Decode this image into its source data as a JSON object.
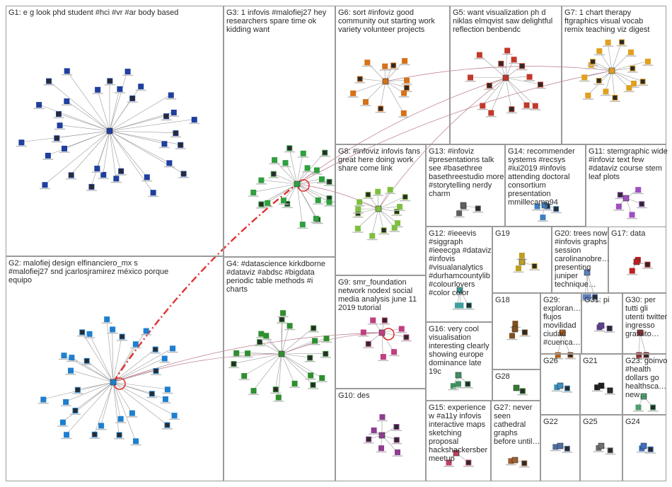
{
  "groups": [
    {
      "id": "G1",
      "title": "G1: e g look phd student #hci #vr #ar body based",
      "color": "#1f3f9f"
    },
    {
      "id": "G2",
      "title": "G2: malofiej design elfinanciero_mx s #malofiej27 snd jcarlosjramirez méxico porque equipo",
      "color": "#1f7fcf"
    },
    {
      "id": "G3",
      "title": "G3: 1 infovis #malofiej27 hey researchers spare time ok kidding want",
      "color": "#2f9f3f"
    },
    {
      "id": "G4",
      "title": "G4: #datascience kirkdborne #dataviz #abdsc #bigdata periodic table methods #i charts",
      "color": "#2f8f2f"
    },
    {
      "id": "G5",
      "title": "G5: want visualization ph d niklas elmqvist saw delightful reflection benbendc",
      "color": "#c0392b"
    },
    {
      "id": "G6",
      "title": "G6: sort #infoviz good community out starting work variety volunteer projects",
      "color": "#d4721a"
    },
    {
      "id": "G7",
      "title": "G7: 1 chart therapy ftgraphics visual vocab remix teaching viz digest",
      "color": "#e0a020"
    },
    {
      "id": "G8",
      "title": "G8: #infoviz infovis fans great here doing work share come link",
      "color": "#7fbf3f"
    },
    {
      "id": "G9",
      "title": "G9: smr_foundation network nodexl social media analysis june 11 2019 tutorial",
      "color": "#c03f7f"
    },
    {
      "id": "G10",
      "title": "G10: des",
      "color": "#8f3f8f"
    },
    {
      "id": "G11",
      "title": "G11: stemgraphic wide #infoviz text few #dataviz course stem leaf plots",
      "color": "#9f4fbf"
    },
    {
      "id": "G12",
      "title": "G12: #ieeevis #siggraph #ieeecga #dataviz #infovis #visualanalytics #durhamcountylib #colourlovers #color color",
      "color": "#3f9f9f"
    },
    {
      "id": "G13",
      "title": "G13: #infoviz #presentations talk see #basethree basethreestudio more #storytelling nerdy charm",
      "color": "#5f5f5f"
    },
    {
      "id": "G14",
      "title": "G14: recommender systems #recsys #iui2019 #infovis attending doctoral consortium presentation mmillecamp94",
      "color": "#3f7fbf"
    },
    {
      "id": "G15",
      "title": "G15: experience w #a11y infovis interactive maps sketching proposal hackshackersber meetup",
      "color": "#bf3f5f"
    },
    {
      "id": "G16",
      "title": "G16: very cool visualisation interesting clearly showing europe dominance late 19c",
      "color": "#3f8f5f"
    },
    {
      "id": "G17",
      "title": "G17: data",
      "color": "#bf1f1f"
    },
    {
      "id": "G18",
      "title": "G18",
      "color": "#7f4f1f"
    },
    {
      "id": "G19",
      "title": "G19",
      "color": "#bf9f1f"
    },
    {
      "id": "G20",
      "title": "G20: trees now #infovis graphs session carolinanobre… presenting juniper technique…",
      "color": "#5f7fbf"
    },
    {
      "id": "G21",
      "title": "G21",
      "color": "#1f1f1f"
    },
    {
      "id": "G22",
      "title": "G22",
      "color": "#4f6f9f"
    },
    {
      "id": "G23",
      "title": "G23: goinvo #health dollars go healthsca… new…",
      "color": "#4f9f6f"
    },
    {
      "id": "G24",
      "title": "G24",
      "color": "#3f6fbf"
    },
    {
      "id": "G25",
      "title": "G25",
      "color": "#6f6f6f"
    },
    {
      "id": "G26",
      "title": "G26",
      "color": "#3f8fbf"
    },
    {
      "id": "G27",
      "title": "G27: never seen cathedral graphs before until…",
      "color": "#9f5f2f"
    },
    {
      "id": "G28",
      "title": "G28",
      "color": "#2f7f2f"
    },
    {
      "id": "G29",
      "title": "G29: exploran… flujos movilidad ciudad #cuenca…",
      "color": "#af5f1f"
    },
    {
      "id": "G30",
      "title": "G30: per tutti gli utenti twitter ingresso gratuito…",
      "color": "#8f2f2f"
    },
    {
      "id": "G31",
      "title": "G31: pi",
      "color": "#5f3f8f"
    }
  ],
  "colors": {
    "box_border": "#9a9a9a",
    "edge": "#9a9a9a",
    "cross_edge": "#e03030",
    "title_text": "#2a2a2a"
  }
}
